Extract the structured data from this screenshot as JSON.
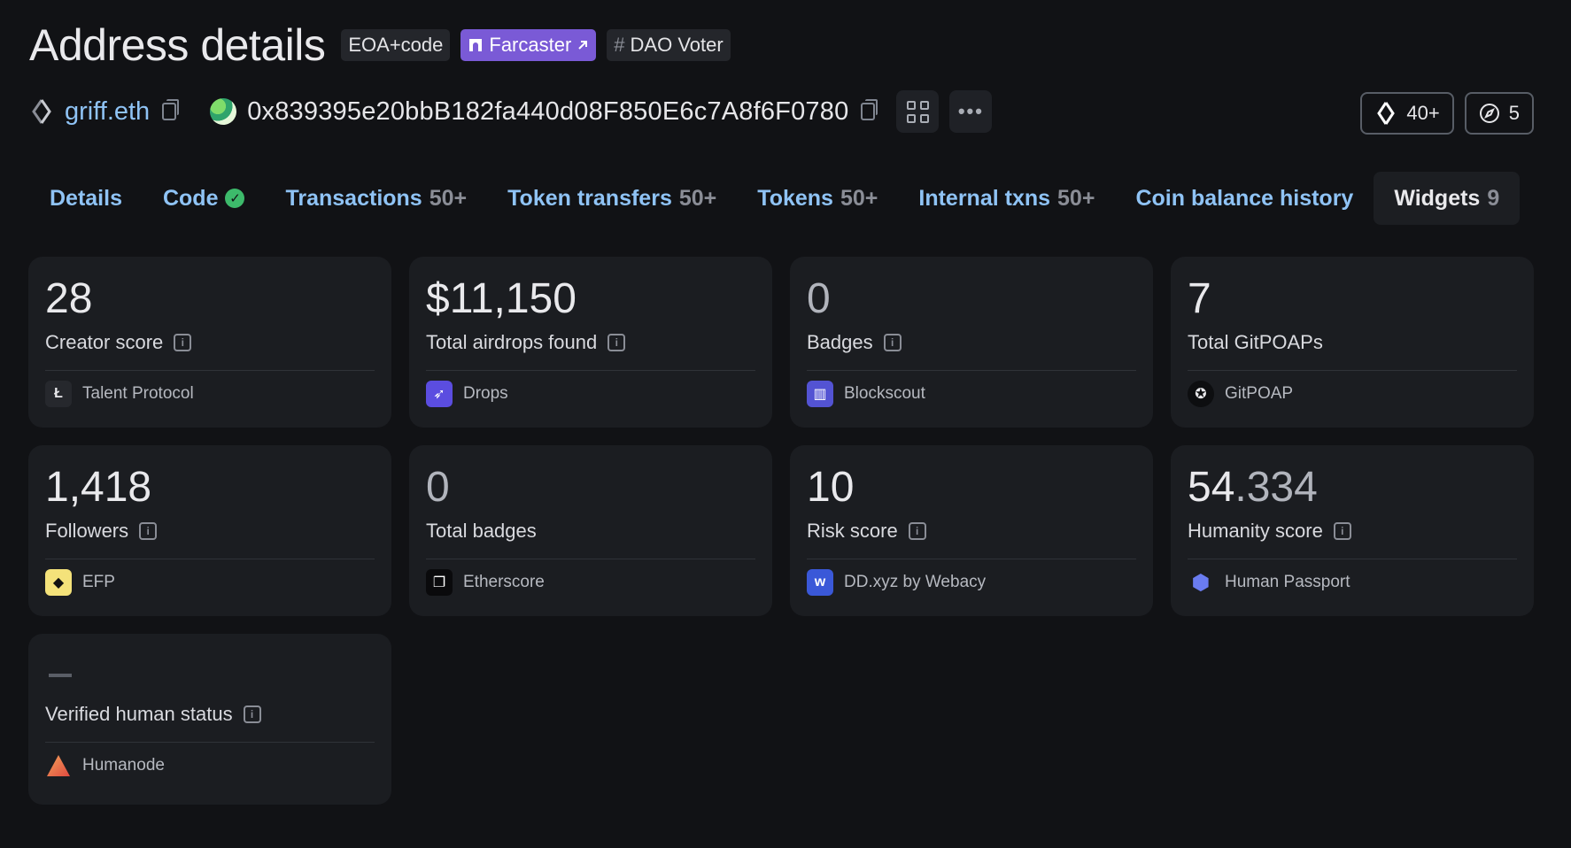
{
  "header": {
    "title": "Address details",
    "tags": [
      {
        "label": "EOA+code"
      },
      {
        "label": "Farcaster"
      },
      {
        "label": "DAO Voter",
        "prefix": "#"
      }
    ]
  },
  "address": {
    "ens": "griff.eth",
    "hash": "0x839395e20bbB182fa440d08F850E6c7A8f6F0780",
    "more_label": "•••",
    "badges": [
      {
        "icon": "ens-icon",
        "count": "40+"
      },
      {
        "icon": "compass-icon",
        "count": "5"
      }
    ]
  },
  "tabs": [
    {
      "label": "Details",
      "count": ""
    },
    {
      "label": "Code",
      "count": ""
    },
    {
      "label": "Transactions",
      "count": "50+"
    },
    {
      "label": "Token transfers",
      "count": "50+"
    },
    {
      "label": "Tokens",
      "count": "50+"
    },
    {
      "label": "Internal txns",
      "count": "50+"
    },
    {
      "label": "Coin balance history",
      "count": ""
    },
    {
      "label": "Widgets",
      "count": "9"
    }
  ],
  "widgets": [
    {
      "value": "28",
      "label": "Creator score",
      "source": "Talent Protocol"
    },
    {
      "value": "$11,150",
      "label": "Total airdrops found",
      "source": "Drops"
    },
    {
      "value": "0",
      "label": "Badges",
      "source": "Blockscout"
    },
    {
      "value": "7",
      "label": "Total GitPOAPs",
      "source": "GitPOAP"
    },
    {
      "value": "1,418",
      "label": "Followers",
      "source": "EFP"
    },
    {
      "value": "0",
      "label": "Total badges",
      "source": "Etherscore"
    },
    {
      "value": "10",
      "label": "Risk score",
      "source": "DD.xyz by Webacy"
    },
    {
      "value_int": "54",
      "value_frac": ".334",
      "label": "Humanity score",
      "source": "Human Passport"
    },
    {
      "value": "—",
      "label": "Verified human status",
      "source": "Humanode"
    }
  ]
}
